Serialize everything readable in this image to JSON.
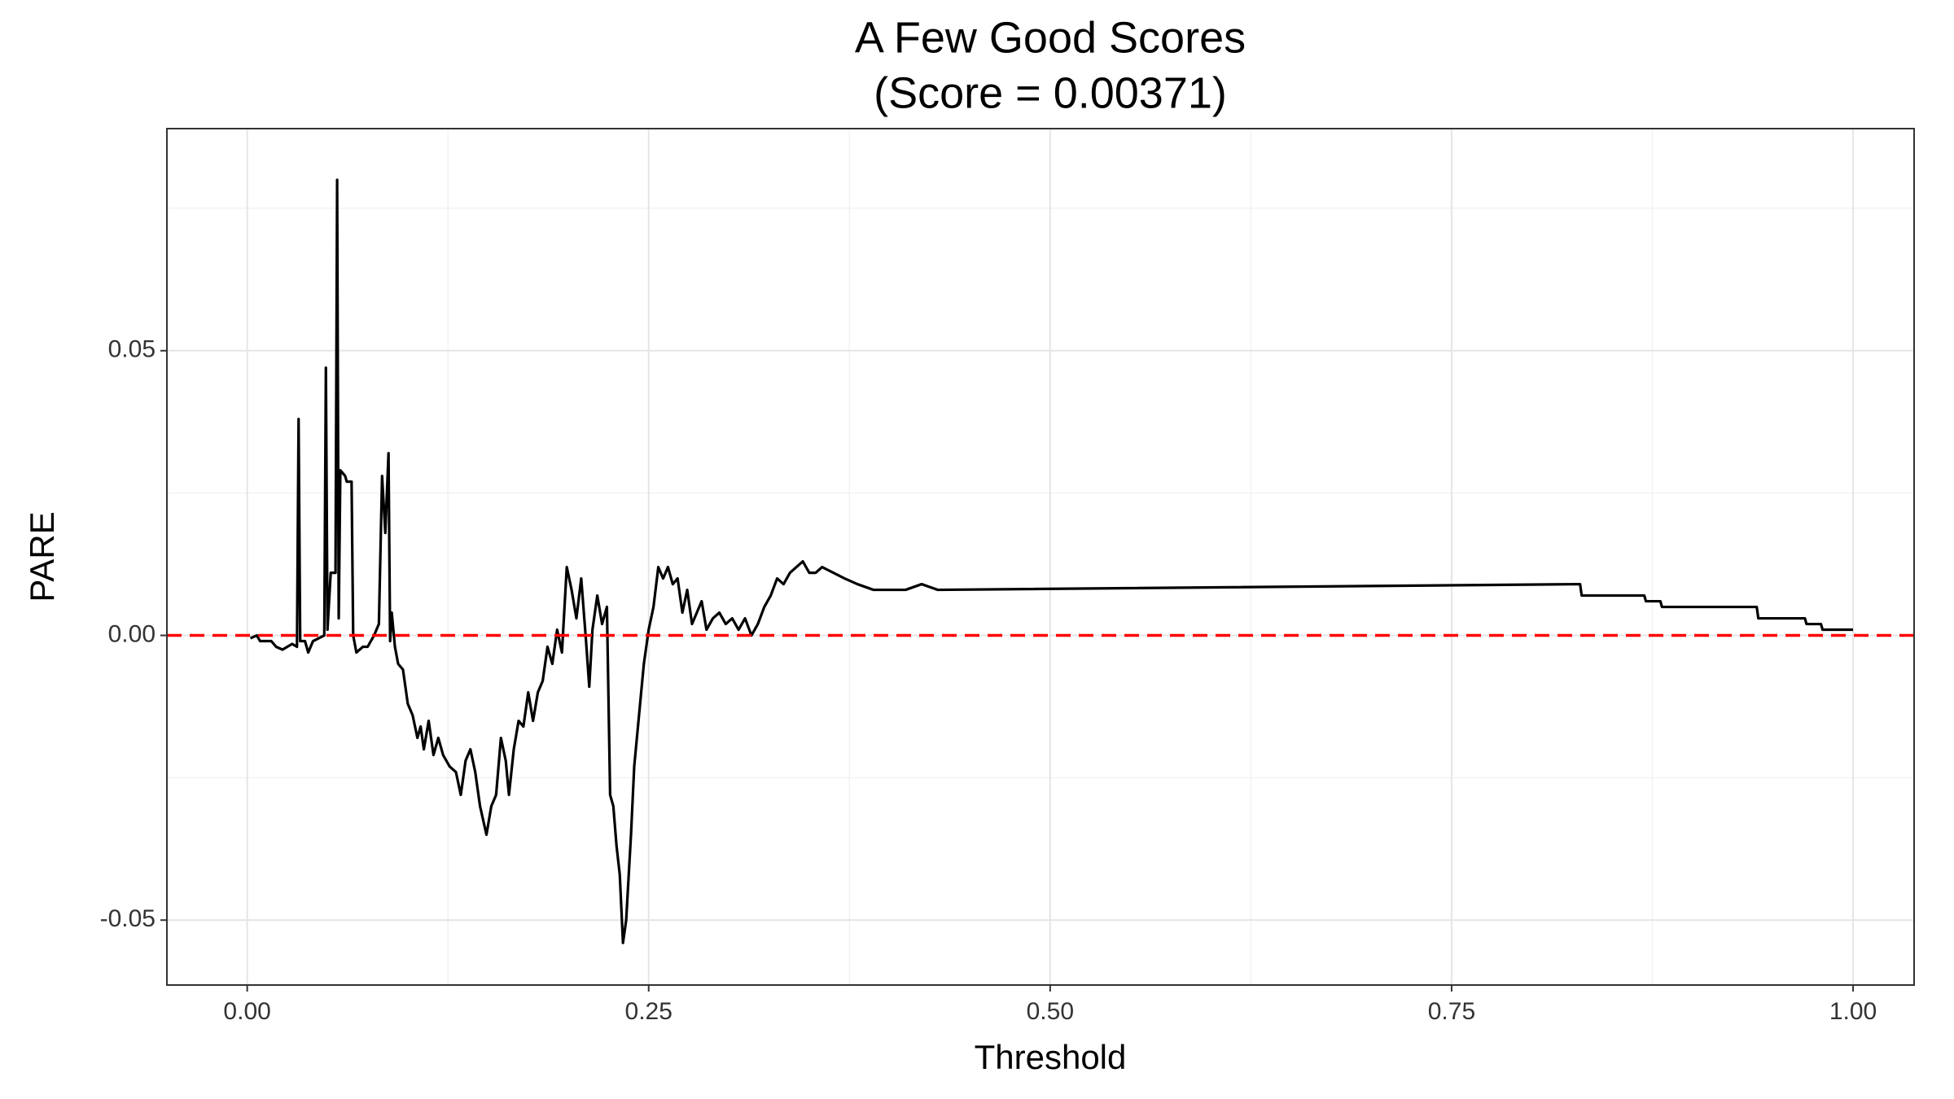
{
  "chart_data": {
    "type": "line",
    "title": "A Few Good Scores",
    "subtitle": "(Score = 0.00371)",
    "x_label": "Threshold",
    "y_label": "PARE",
    "xlim": [
      -0.05,
      1.038
    ],
    "ylim": [
      -0.0614,
      0.089
    ],
    "xticks": [
      {
        "value": 0,
        "label": "0.00"
      },
      {
        "value": 0.25,
        "label": "0.25"
      },
      {
        "value": 0.5,
        "label": "0.50"
      },
      {
        "value": 0.75,
        "label": "0.75"
      },
      {
        "value": 1,
        "label": "1.00"
      }
    ],
    "yticks": [
      -0.05,
      {
        "value": 0,
        "label": "0.00"
      },
      0.05
    ],
    "xminor": [
      0.125,
      0.375,
      0.625,
      0.875
    ],
    "yminor": [
      -0.025,
      0.025,
      0.075
    ],
    "grid": true,
    "color": "#000000",
    "hline": 0,
    "hline_color": "#ff0000",
    "x": [
      0.002,
      0.006,
      0.008,
      0.015,
      0.018,
      0.022,
      0.025,
      0.028,
      0.031,
      0.032,
      0.033,
      0.036,
      0.038,
      0.041,
      0.048,
      0.049,
      0.05,
      0.052,
      0.055,
      0.056,
      0.057,
      0.058,
      0.061,
      0.062,
      0.065,
      0.066,
      0.068,
      0.072,
      0.075,
      0.079,
      0.082,
      0.084,
      0.086,
      0.088,
      0.089,
      0.09,
      0.092,
      0.094,
      0.097,
      0.1,
      0.103,
      0.106,
      0.108,
      0.11,
      0.113,
      0.116,
      0.119,
      0.122,
      0.126,
      0.13,
      0.133,
      0.136,
      0.139,
      0.142,
      0.145,
      0.149,
      0.152,
      0.155,
      0.158,
      0.161,
      0.163,
      0.166,
      0.169,
      0.172,
      0.175,
      0.178,
      0.181,
      0.184,
      0.187,
      0.19,
      0.193,
      0.196,
      0.199,
      0.202,
      0.205,
      0.208,
      0.211,
      0.213,
      0.215,
      0.218,
      0.221,
      0.224,
      0.226,
      0.228,
      0.23,
      0.232,
      0.234,
      0.236,
      0.239,
      0.241,
      0.244,
      0.247,
      0.25,
      0.253,
      0.256,
      0.259,
      0.262,
      0.265,
      0.268,
      0.271,
      0.274,
      0.277,
      0.28,
      0.283,
      0.286,
      0.29,
      0.294,
      0.298,
      0.302,
      0.306,
      0.31,
      0.314,
      0.318,
      0.322,
      0.326,
      0.33,
      0.334,
      0.338,
      0.342,
      0.346,
      0.35,
      0.354,
      0.358,
      0.365,
      0.372,
      0.38,
      0.39,
      0.41,
      0.42,
      0.43,
      0.83,
      0.831,
      0.87,
      0.871,
      0.88,
      0.881,
      0.94,
      0.941,
      0.97,
      0.971,
      0.98,
      0.981,
      1.0
    ],
    "y": [
      -0.0005,
      0,
      -0.001,
      -0.001,
      -0.002,
      -0.0025,
      -0.002,
      -0.0015,
      -0.002,
      0.038,
      -0.001,
      -0.001,
      -0.003,
      -0.001,
      0,
      0.047,
      0.001,
      0.011,
      0.011,
      0.08,
      0.003,
      0.029,
      0.028,
      0.027,
      0.027,
      0,
      -0.003,
      -0.002,
      -0.002,
      0,
      0.002,
      0.028,
      0.018,
      0.032,
      -0.001,
      0.004,
      -0.002,
      -0.005,
      -0.006,
      -0.012,
      -0.014,
      -0.018,
      -0.016,
      -0.02,
      -0.015,
      -0.021,
      -0.018,
      -0.021,
      -0.023,
      -0.024,
      -0.028,
      -0.022,
      -0.02,
      -0.024,
      -0.03,
      -0.035,
      -0.03,
      -0.028,
      -0.018,
      -0.022,
      -0.028,
      -0.02,
      -0.015,
      -0.016,
      -0.01,
      -0.015,
      -0.01,
      -0.008,
      -0.002,
      -0.005,
      0.001,
      -0.003,
      0.012,
      0.008,
      0.003,
      0.01,
      -0.001,
      -0.009,
      0.001,
      0.007,
      0.002,
      0.005,
      -0.028,
      -0.03,
      -0.037,
      -0.042,
      -0.054,
      -0.05,
      -0.035,
      -0.023,
      -0.014,
      -0.005,
      0.001,
      0.005,
      0.012,
      0.01,
      0.012,
      0.009,
      0.01,
      0.004,
      0.008,
      0.002,
      0.004,
      0.006,
      0.001,
      0.003,
      0.004,
      0.002,
      0.003,
      0.001,
      0.003,
      0,
      0.002,
      0.005,
      0.007,
      0.01,
      0.009,
      0.011,
      0.012,
      0.013,
      0.011,
      0.011,
      0.012,
      0.011,
      0.01,
      0.009,
      0.008,
      0.008,
      0.009,
      0.008,
      0.009,
      0.007,
      0.007,
      0.006,
      0.006,
      0.005,
      0.005,
      0.003,
      0.003,
      0.002,
      0.002,
      0.001,
      0.001
    ]
  }
}
